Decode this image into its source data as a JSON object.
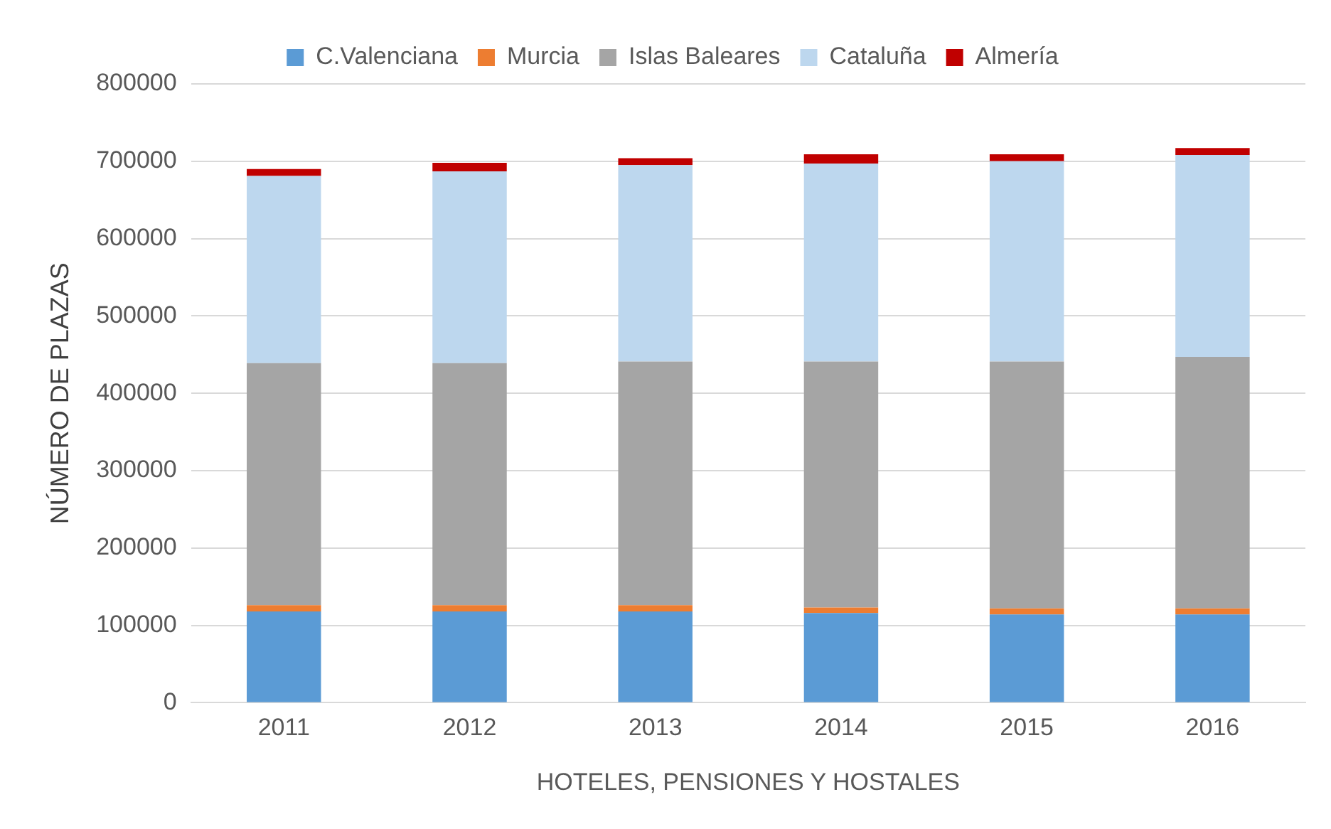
{
  "chart_data": {
    "type": "bar",
    "stacked": true,
    "xlabel": "HOTELES, PENSIONES Y HOSTALES",
    "ylabel": "NÚMERO DE PLAZAS",
    "categories": [
      "2011",
      "2012",
      "2013",
      "2014",
      "2015",
      "2016"
    ],
    "series": [
      {
        "name": "C.Valenciana",
        "color": "#5b9bd5",
        "values": [
          118000,
          118000,
          118000,
          116000,
          114000,
          114000
        ]
      },
      {
        "name": "Murcia",
        "color": "#ed7d31",
        "values": [
          8000,
          8000,
          8000,
          7000,
          8000,
          8000
        ]
      },
      {
        "name": "Islas Baleares",
        "color": "#a5a5a5",
        "values": [
          313000,
          313000,
          315000,
          318000,
          319000,
          325000
        ]
      },
      {
        "name": "Cataluña",
        "color": "#bdd7ee",
        "values": [
          242000,
          248000,
          254000,
          256000,
          259000,
          261000
        ]
      },
      {
        "name": "Almería",
        "color": "#c00000",
        "values": [
          9000,
          11000,
          9000,
          12000,
          9000,
          9000
        ]
      }
    ],
    "ylim": [
      0,
      800000
    ],
    "yticks": [
      0,
      100000,
      200000,
      300000,
      400000,
      500000,
      600000,
      700000,
      800000
    ],
    "grid": "y",
    "legend": "top"
  }
}
